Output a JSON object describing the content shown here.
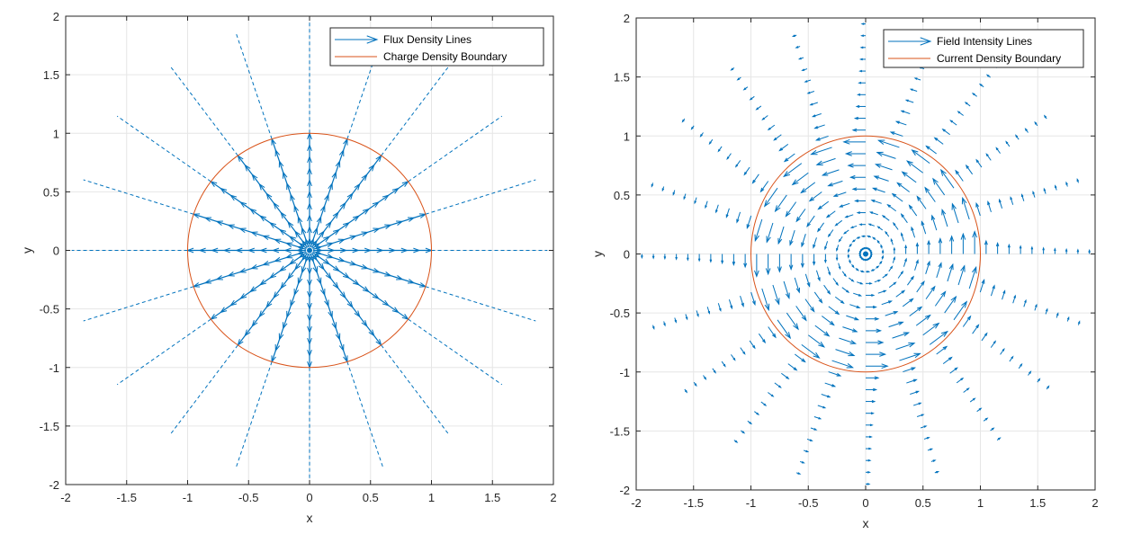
{
  "chart_data": [
    {
      "type": "quiver",
      "xlabel": "x",
      "ylabel": "y",
      "xlim": [
        -2,
        2
      ],
      "ylim": [
        -2,
        2
      ],
      "xticks": [
        "-2",
        "-1.5",
        "-1",
        "-0.5",
        "0",
        "0.5",
        "1",
        "1.5",
        "2"
      ],
      "yticks": [
        "-2",
        "-1.5",
        "-1",
        "-0.5",
        "0",
        "0.5",
        "1",
        "1.5",
        "2"
      ],
      "grid": true,
      "legend_position": "top-right",
      "field": "radial-outward",
      "radial_lines": 20,
      "line_length": 1.95,
      "boundary_radius": 1,
      "series": [
        {
          "name": "Flux Density Lines",
          "color": "#0072BD"
        },
        {
          "name": "Charge Density Boundary",
          "color": "#D95319"
        }
      ]
    },
    {
      "type": "quiver",
      "xlabel": "x",
      "ylabel": "y",
      "xlim": [
        -2,
        2
      ],
      "ylim": [
        -2,
        2
      ],
      "xticks": [
        "-2",
        "-1.5",
        "-1",
        "-0.5",
        "0",
        "0.5",
        "1",
        "1.5",
        "2"
      ],
      "yticks": [
        "-2",
        "-1.5",
        "-1",
        "-0.5",
        "0",
        "0.5",
        "1",
        "1.5",
        "2"
      ],
      "grid": true,
      "legend_position": "top-right",
      "field": "azimuthal-counterclockwise",
      "radial_lines": 20,
      "line_length": 1.95,
      "boundary_radius": 1,
      "series": [
        {
          "name": "Field Intensity Lines",
          "color": "#0072BD"
        },
        {
          "name": "Current Density Boundary",
          "color": "#D95319"
        }
      ]
    }
  ]
}
